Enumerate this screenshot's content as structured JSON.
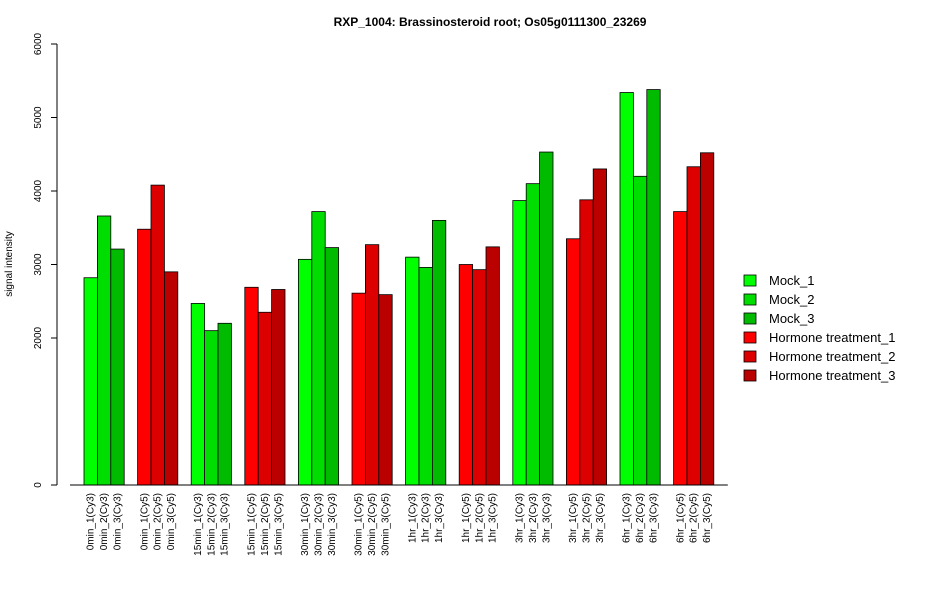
{
  "chart_data": {
    "type": "bar",
    "title": "RXP_1004: Brassinosteroid root; Os05g0111300_23269",
    "xlabel": "",
    "ylabel": "signal intensity",
    "ylim": [
      0,
      6000
    ],
    "y_ticks": [
      0,
      2000,
      3000,
      4000,
      5000,
      6000
    ],
    "grid": false,
    "legend_position": "right",
    "categories": [
      "0min_1(Cy3)",
      "0min_2(Cy3)",
      "0min_3(Cy3)",
      "0min_1(Cy5)",
      "0min_2(Cy5)",
      "0min_3(Cy5)",
      "15min_1(Cy3)",
      "15min_2(Cy3)",
      "15min_3(Cy3)",
      "15min_1(Cy5)",
      "15min_2(Cy5)",
      "15min_3(Cy5)",
      "30min_1(Cy3)",
      "30min_2(Cy3)",
      "30min_3(Cy3)",
      "30min_1(Cy5)",
      "30min_2(Cy5)",
      "30min_3(Cy5)",
      "1hr_1(Cy3)",
      "1hr_2(Cy3)",
      "1hr_3(Cy3)",
      "1hr_1(Cy5)",
      "1hr_2(Cy5)",
      "1hr_3(Cy5)",
      "3hr_1(Cy3)",
      "3hr_2(Cy3)",
      "3hr_3(Cy3)",
      "3hr_1(Cy5)",
      "3hr_2(Cy5)",
      "3hr_3(Cy5)",
      "6hr_1(Cy3)",
      "6hr_2(Cy3)",
      "6hr_3(Cy3)",
      "6hr_1(Cy5)",
      "6hr_2(Cy5)",
      "6hr_3(Cy5)"
    ],
    "values": [
      2820,
      3660,
      3210,
      3480,
      4080,
      2900,
      2470,
      2100,
      2200,
      2690,
      2350,
      2660,
      3070,
      3720,
      3230,
      2610,
      3270,
      2590,
      3100,
      2960,
      3600,
      3000,
      2930,
      3240,
      3870,
      4100,
      4530,
      3350,
      3880,
      4300,
      5340,
      4200,
      5380,
      3720,
      4330,
      4520
    ],
    "bar_colors": [
      "#00ff00",
      "#00dd00",
      "#00bb00",
      "#ff0000",
      "#dd0000",
      "#bb0000",
      "#00ff00",
      "#00dd00",
      "#00bb00",
      "#ff0000",
      "#dd0000",
      "#bb0000",
      "#00ff00",
      "#00dd00",
      "#00bb00",
      "#ff0000",
      "#dd0000",
      "#bb0000",
      "#00ff00",
      "#00dd00",
      "#00bb00",
      "#ff0000",
      "#dd0000",
      "#bb0000",
      "#00ff00",
      "#00dd00",
      "#00bb00",
      "#ff0000",
      "#dd0000",
      "#bb0000",
      "#00ff00",
      "#00dd00",
      "#00bb00",
      "#ff0000",
      "#dd0000",
      "#bb0000"
    ],
    "legend": [
      {
        "label": "Mock_1",
        "color": "#00ff00"
      },
      {
        "label": "Mock_2",
        "color": "#00dd00"
      },
      {
        "label": "Mock_3",
        "color": "#00bb00"
      },
      {
        "label": "Hormone treatment_1",
        "color": "#ff0000"
      },
      {
        "label": "Hormone treatment_2",
        "color": "#dd0000"
      },
      {
        "label": "Hormone treatment_3",
        "color": "#bb0000"
      }
    ]
  }
}
